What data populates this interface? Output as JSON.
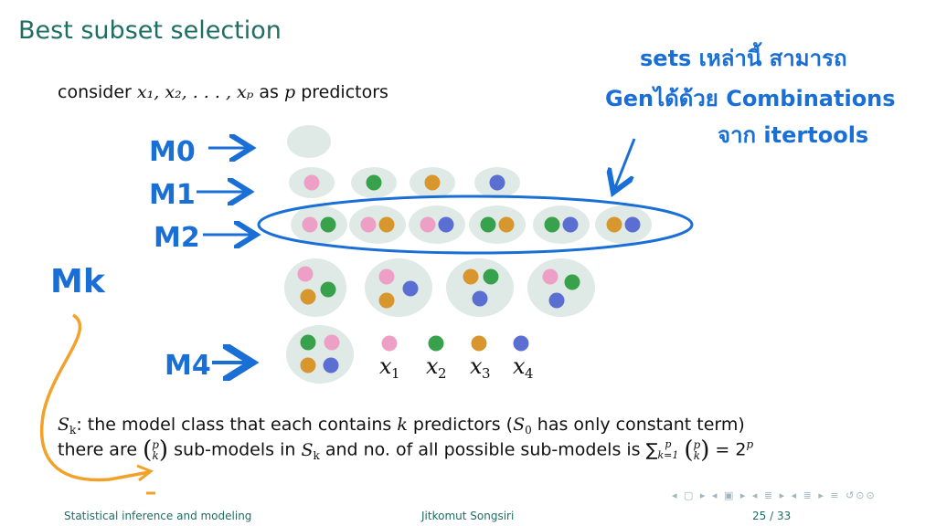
{
  "slide": {
    "title": "Best subset selection",
    "consider_prefix": "consider",
    "consider_vars": "x₁, x₂, . . . , xₚ",
    "consider_as": "as",
    "consider_p": "p",
    "consider_suffix": "predictors"
  },
  "diagram": {
    "model_labels": [
      "M0",
      "M1",
      "M2",
      "M4",
      "Mk"
    ],
    "predictor_labels": [
      "x",
      "x",
      "x",
      "x"
    ],
    "predictor_subscripts": [
      "1",
      "2",
      "3",
      "4"
    ],
    "predictor_colors": [
      "#ee9fc6",
      "#37a14b",
      "#d8962e",
      "#5b6fd3"
    ],
    "bubble_color": "#dfe9e5",
    "annotation_color": "#1a6fd6",
    "arrow_color": "#f2a12a",
    "handwritten_note_lines": [
      "sets เหล่านี้ สามารถ",
      "Genได้ด้วย Combinations",
      "จาก itertools"
    ]
  },
  "text": {
    "sk_label": "S",
    "sk_sub": "k",
    "sk_desc": ": the model class that each contains",
    "sk_k": "k",
    "sk_mid": "predictors (",
    "s0": "S",
    "s0_sub": "0",
    "sk_end": "has only constant term)",
    "there_are": "there are",
    "binom_top": "p",
    "binom_bottom": "k",
    "submodels_in": "sub-models in",
    "and_no": "and no. of all possible sub-models is",
    "sum": "∑",
    "sum_sup": "p",
    "sum_sub": "k=1",
    "equals": "= 2",
    "power": "p"
  },
  "footer": {
    "course": "Statistical inference and modeling",
    "author": "Jitkomut Songsiri",
    "page": "25 / 33"
  }
}
